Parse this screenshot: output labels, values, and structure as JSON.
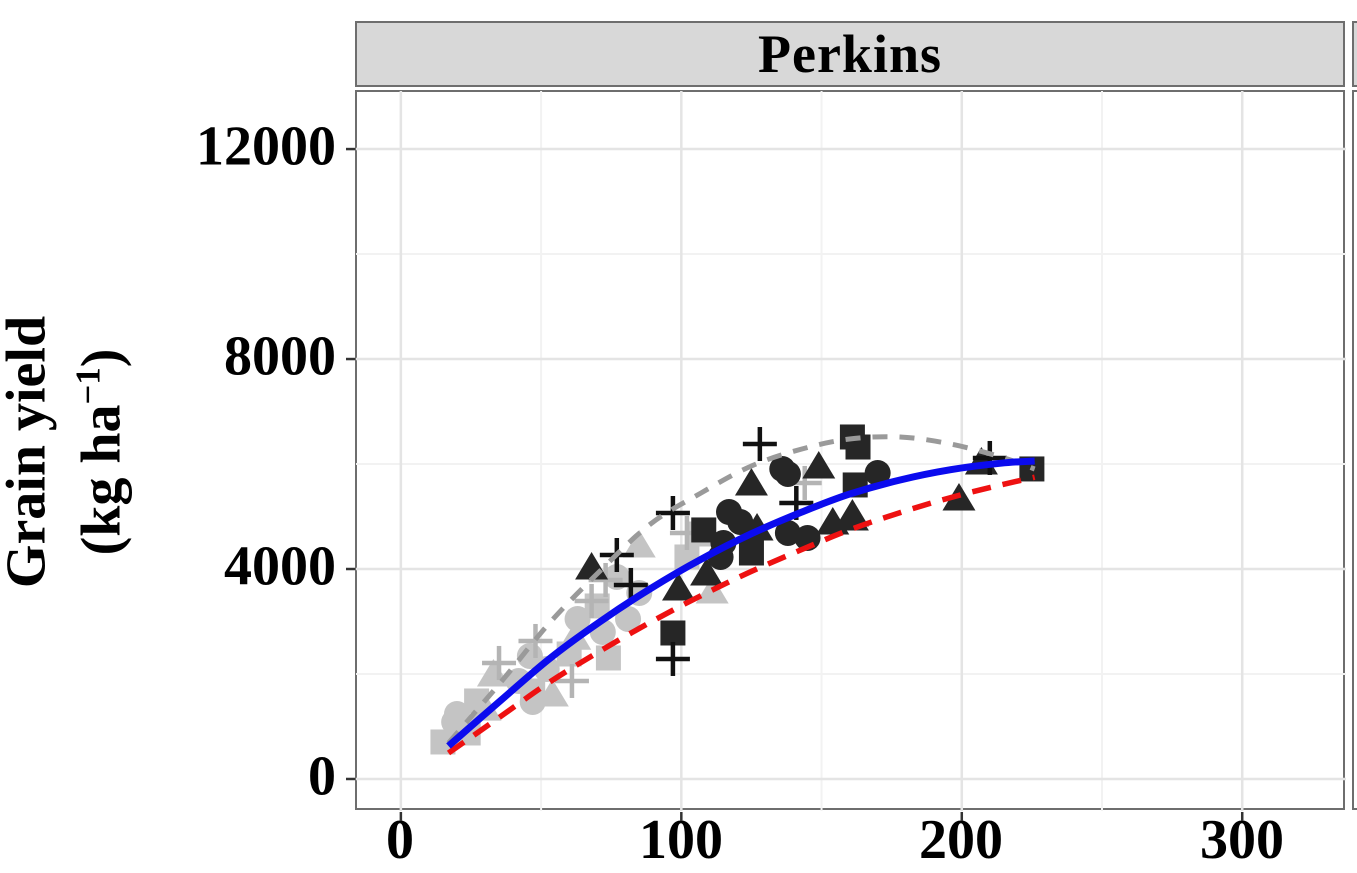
{
  "facet": {
    "title": "Perkins"
  },
  "y_axis": {
    "title_line1": "Grain yield",
    "title_line2_pre": "(kg ha",
    "title_line2_sup": "−1",
    "title_line2_post": ")",
    "tick_labels": [
      "12000",
      "8000",
      "4000",
      "0"
    ]
  },
  "x_axis": {
    "tick_labels": [
      "0",
      "100",
      "200",
      "300"
    ]
  },
  "chart_data": {
    "type": "scatter",
    "title": "Perkins",
    "xlabel": "",
    "ylabel": "Grain yield (kg ha−1)",
    "xlim": [
      -16,
      337
    ],
    "ylim": [
      -610,
      13106
    ],
    "x_ticks": [
      0,
      100,
      200,
      300
    ],
    "x_minor": [
      50,
      150,
      250
    ],
    "y_ticks": [
      0,
      4000,
      8000,
      12000
    ],
    "y_minor": [
      2000,
      6000,
      10000
    ],
    "grid": "major+minor",
    "legend": "none",
    "colors": {
      "light_group": "#c4c4c4",
      "dark_group": "#262626",
      "curve_blue": "#0b0bee",
      "curve_red": "#ee1111",
      "curve_gray": "#9a9a9a",
      "gridline_major": "#e4e4e4",
      "gridline_minor": "#f2f2f2",
      "strip_fill": "#d8d8d8",
      "border": "#6e6e6e"
    },
    "series": [
      {
        "name": "light-square",
        "shape": "square",
        "color": "#c4c4c4",
        "points": [
          [
            15,
            705
          ],
          [
            24,
            876
          ],
          [
            27,
            1486
          ],
          [
            47,
            1676
          ],
          [
            60,
            2381
          ],
          [
            70,
            3296
          ],
          [
            74,
            2305
          ],
          [
            102,
            4229
          ],
          [
            107,
            4667
          ]
        ]
      },
      {
        "name": "light-circle",
        "shape": "circle",
        "color": "#c4c4c4",
        "points": [
          [
            19,
            1086
          ],
          [
            20,
            1238
          ],
          [
            42,
            1867
          ],
          [
            46,
            2343
          ],
          [
            47,
            1467
          ],
          [
            52,
            2095
          ],
          [
            63,
            3048
          ],
          [
            72,
            2800
          ],
          [
            77,
            3848
          ],
          [
            81,
            3048
          ],
          [
            85,
            3543
          ]
        ]
      },
      {
        "name": "light-triangle",
        "shape": "triangle",
        "color": "#c4c4c4",
        "points": [
          [
            30,
            1350
          ],
          [
            33,
            2000
          ],
          [
            54,
            1619
          ],
          [
            62,
            2700
          ],
          [
            85,
            4458
          ],
          [
            111,
            3581
          ]
        ]
      },
      {
        "name": "light-plus",
        "shape": "plus",
        "color": "#b4b4b4",
        "points": [
          [
            35,
            2210
          ],
          [
            48,
            2629
          ],
          [
            61,
            1867
          ],
          [
            68,
            3391
          ],
          [
            73,
            3791
          ],
          [
            102,
            4687
          ],
          [
            144,
            5639
          ]
        ]
      },
      {
        "name": "dark-square",
        "shape": "square",
        "color": "#262626",
        "points": [
          [
            97,
            2781
          ],
          [
            108,
            4744
          ],
          [
            125,
            4305
          ],
          [
            161,
            6515
          ],
          [
            163,
            6324
          ],
          [
            162,
            5601
          ],
          [
            225,
            5906
          ]
        ]
      },
      {
        "name": "dark-circle",
        "shape": "circle",
        "color": "#262626",
        "points": [
          [
            114,
            4229
          ],
          [
            115,
            4496
          ],
          [
            117,
            5086
          ],
          [
            121,
            4896
          ],
          [
            136,
            5906
          ],
          [
            138,
            5810
          ],
          [
            138,
            4686
          ],
          [
            145,
            4591
          ],
          [
            170,
            5829
          ]
        ]
      },
      {
        "name": "dark-triangle",
        "shape": "triangle",
        "color": "#262626",
        "points": [
          [
            68,
            4038
          ],
          [
            99,
            3639
          ],
          [
            109,
            3924
          ],
          [
            125,
            5639
          ],
          [
            127,
            4782
          ],
          [
            149,
            5963
          ],
          [
            154,
            4896
          ],
          [
            161,
            4972
          ],
          [
            161,
            5048
          ],
          [
            199,
            5353
          ],
          [
            207,
            6039
          ]
        ]
      },
      {
        "name": "dark-plus",
        "shape": "plus",
        "color": "#111111",
        "points": [
          [
            77,
            4267
          ],
          [
            82,
            3696
          ],
          [
            97,
            2286
          ],
          [
            97,
            5067
          ],
          [
            128,
            6381
          ],
          [
            141,
            5258
          ],
          [
            210,
            6115
          ]
        ]
      }
    ],
    "curves": [
      {
        "name": "upper-envelope",
        "color": "#9a9a9a",
        "dash": "15 12",
        "width": 5,
        "x": [
          17,
          36,
          53,
          71,
          89,
          107,
          125,
          143,
          160,
          178,
          196,
          214,
          226
        ],
        "y": [
          686,
          1867,
          2972,
          3962,
          4858,
          5448,
          5963,
          6287,
          6477,
          6515,
          6382,
          6134,
          5906
        ]
      },
      {
        "name": "lower-envelope",
        "color": "#ee1111",
        "dash": "19 12",
        "width": 5.5,
        "x": [
          17,
          36,
          53,
          71,
          89,
          107,
          125,
          143,
          160,
          178,
          196,
          214,
          226
        ],
        "y": [
          495,
          1208,
          1844,
          2437,
          2987,
          3492,
          3955,
          4372,
          4745,
          5075,
          5361,
          5603,
          5748
        ]
      },
      {
        "name": "mean-response",
        "color": "#0b0bee",
        "dash": "",
        "width": 7,
        "x": [
          17,
          36,
          53,
          71,
          89,
          107,
          125,
          143,
          160,
          178,
          196,
          214,
          226
        ],
        "y": [
          629,
          1515,
          2292,
          2997,
          3627,
          4185,
          4673,
          5086,
          5427,
          5696,
          5892,
          6016,
          6058
        ]
      }
    ]
  }
}
